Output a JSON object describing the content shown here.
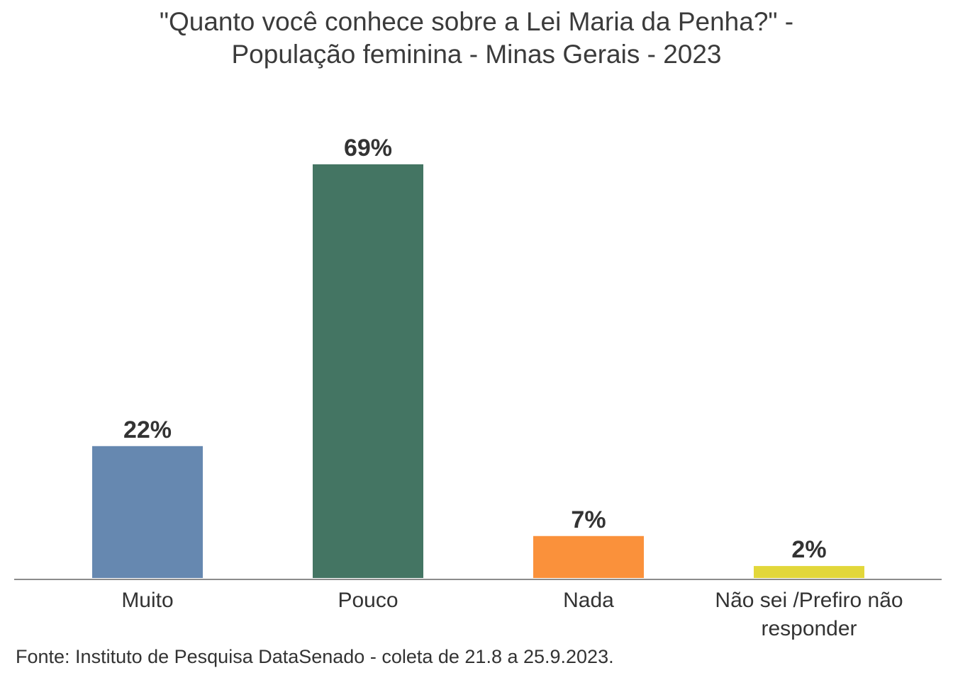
{
  "chart_data": {
    "type": "bar",
    "title_lines": [
      "\"Quanto você conhece sobre a Lei Maria da Penha?\" -",
      "População feminina - Minas Gerais - 2023"
    ],
    "categories": [
      [
        "Muito"
      ],
      [
        "Pouco"
      ],
      [
        "Nada"
      ],
      [
        "Não sei /Prefiro não",
        "responder"
      ]
    ],
    "values": [
      22,
      69,
      7,
      2
    ],
    "value_labels": [
      "22%",
      "69%",
      "7%",
      "2%"
    ],
    "unit": "%",
    "colors": [
      "#6688b0",
      "#447563",
      "#fa913b",
      "#e2d73a"
    ],
    "ylim": [
      0,
      69
    ],
    "grid": false,
    "legend": "none"
  },
  "source": "Fonte: Instituto de Pesquisa DataSenado - coleta de 21.8 a 25.9.2023."
}
